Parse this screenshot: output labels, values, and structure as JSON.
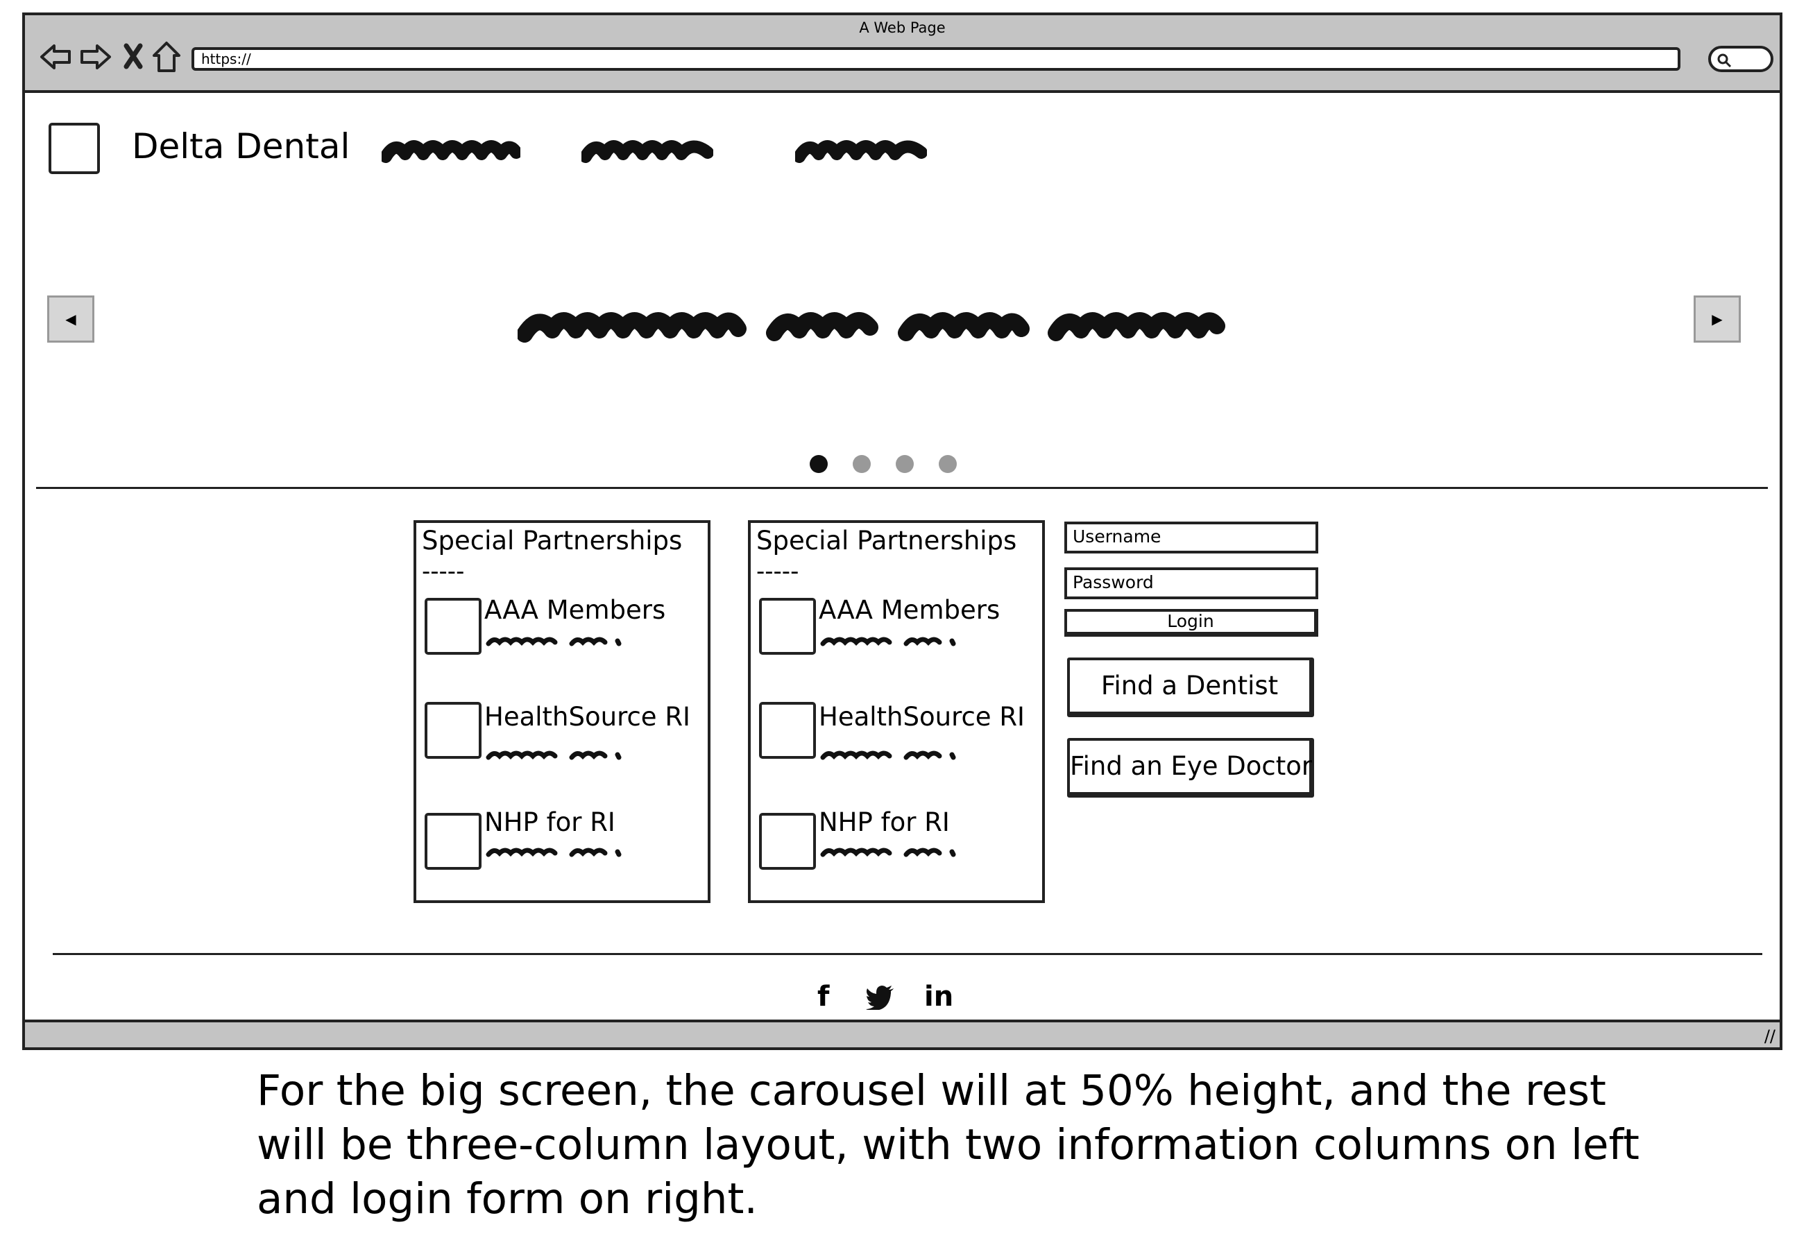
{
  "browser": {
    "window_title": "A Web Page",
    "url": "https://",
    "nav_icons": [
      "back-arrow-icon",
      "forward-arrow-icon",
      "close-x-icon",
      "home-icon"
    ],
    "resize_glyph": "//"
  },
  "header": {
    "brand": "Delta Dental"
  },
  "carousel": {
    "prev_glyph": "◀",
    "next_glyph": "▶",
    "slide_count": 4,
    "active_slide": 1
  },
  "cards": [
    {
      "title": "Special Partnerships",
      "divider": "-----",
      "items": [
        {
          "label": "AAA Members"
        },
        {
          "label": "HealthSource RI"
        },
        {
          "label": "NHP for RI"
        }
      ]
    },
    {
      "title": "Special Partnerships",
      "divider": "-----",
      "items": [
        {
          "label": "AAA Members"
        },
        {
          "label": "HealthSource RI"
        },
        {
          "label": "NHP for RI"
        }
      ]
    }
  ],
  "login": {
    "username_label": "Username",
    "password_label": "Password",
    "login_button": "Login",
    "find_dentist": "Find a Dentist",
    "find_eye_doctor": "Find an Eye Doctor"
  },
  "footer": {
    "social": [
      {
        "icon": "facebook-icon",
        "glyph": "f"
      },
      {
        "icon": "twitter-icon",
        "glyph": "🐦"
      },
      {
        "icon": "linkedin-icon",
        "glyph": "in"
      }
    ]
  },
  "caption": "For the big screen, the carousel will at 50% height, and the rest will be three-column layout, with two information columns on left and login form on right.",
  "colors": {
    "chrome": "#c4c4c4",
    "border": "#222222",
    "dot_active": "#111111",
    "dot_inactive": "#999999"
  }
}
